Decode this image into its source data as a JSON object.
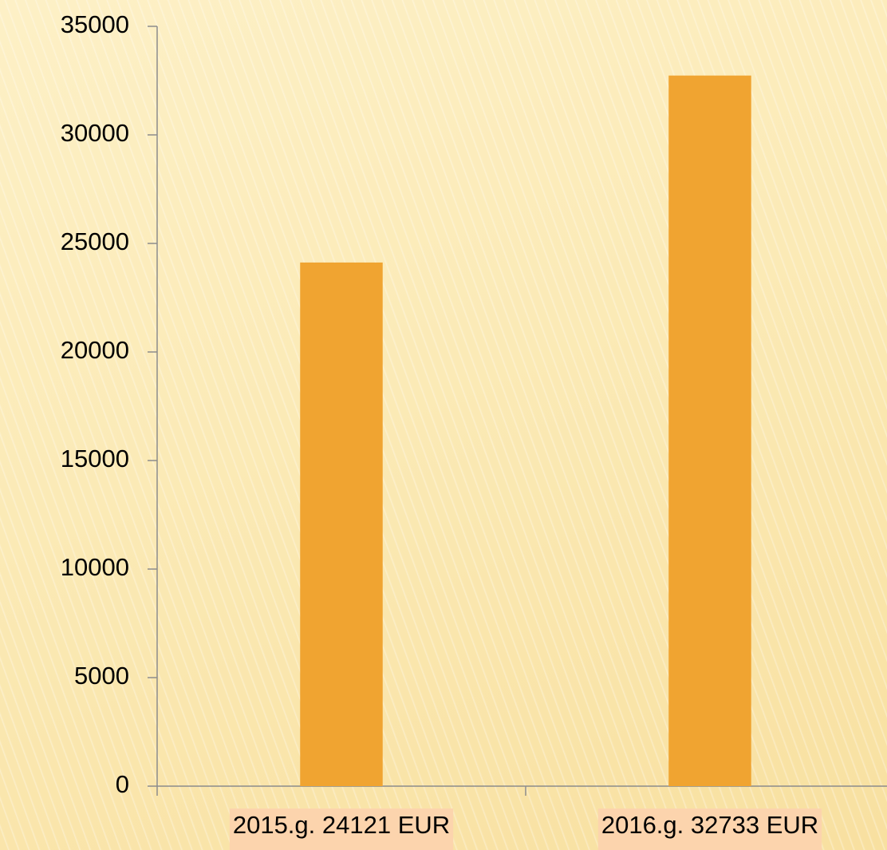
{
  "chart_data": {
    "type": "bar",
    "categories": [
      "2015.g. 24121 EUR",
      "2016.g. 32733 EUR"
    ],
    "values": [
      24121,
      32733
    ],
    "color": "#f0a431",
    "label_background": "#fcd4ad",
    "ylim": [
      0,
      35000
    ],
    "yticks": [
      0,
      5000,
      10000,
      15000,
      20000,
      25000,
      30000,
      35000
    ],
    "grid": false
  }
}
